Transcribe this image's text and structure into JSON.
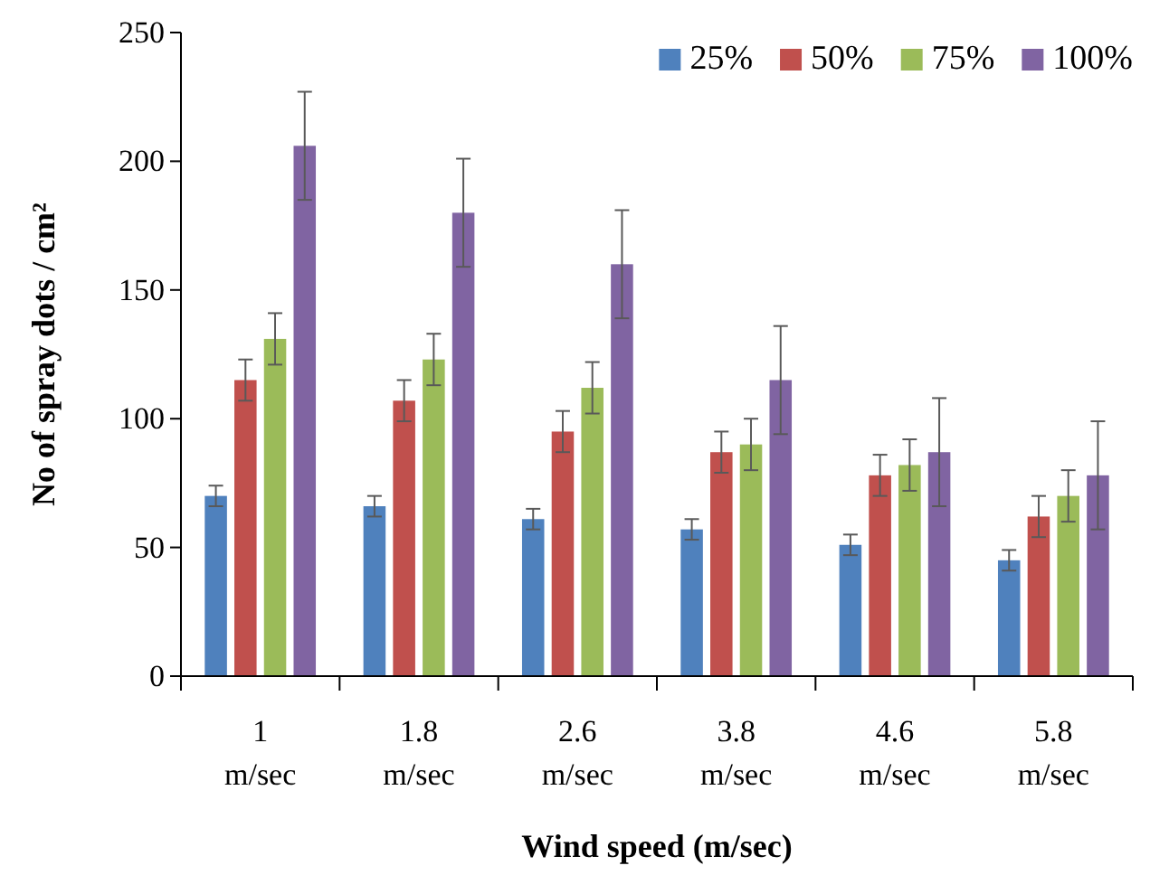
{
  "chart_data": {
    "type": "bar",
    "xlabel": "Wind speed (m/sec)",
    "ylabel": "No of spray dots / cm²",
    "categories": [
      "1 m/sec",
      "1.8 m/sec",
      "2.6 m/sec",
      "3.8 m/sec",
      "4.6 m/sec",
      "5.8 m/sec"
    ],
    "series": [
      {
        "name": "25%",
        "color": "#4f81bd",
        "values": [
          70,
          66,
          61,
          57,
          51,
          45
        ],
        "errors": [
          4,
          4,
          4,
          4,
          4,
          4
        ]
      },
      {
        "name": "50%",
        "color": "#c0504d",
        "values": [
          115,
          107,
          95,
          87,
          78,
          62
        ],
        "errors": [
          8,
          8,
          8,
          8,
          8,
          8
        ]
      },
      {
        "name": "75%",
        "color": "#9bbb59",
        "values": [
          131,
          123,
          112,
          90,
          82,
          70
        ],
        "errors": [
          10,
          10,
          10,
          10,
          10,
          10
        ]
      },
      {
        "name": "100%",
        "color": "#8064a2",
        "values": [
          206,
          180,
          160,
          115,
          87,
          78
        ],
        "errors": [
          21,
          21,
          21,
          21,
          21,
          21
        ]
      }
    ],
    "ylim": [
      0,
      250
    ],
    "yticks": [
      0,
      50,
      100,
      150,
      200,
      250
    ],
    "grid": false,
    "legend": "top right"
  }
}
